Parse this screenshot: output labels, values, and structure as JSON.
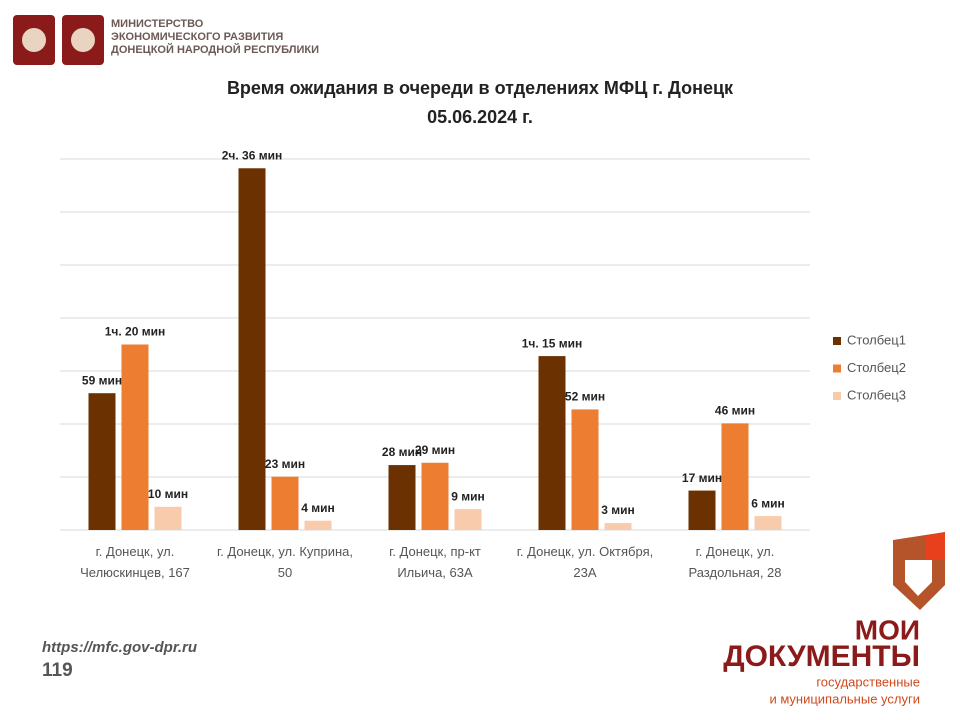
{
  "header": {
    "org_lines": [
      "МИНИСТЕРСТВО",
      "ЭКОНОМИЧЕСКОГО РАЗВИТИЯ",
      "ДОНЕЦКОЙ НАРОДНОЙ РЕСПУБЛИКИ"
    ]
  },
  "footer": {
    "url": "https://mfc.gov-dpr.ru",
    "phone": "119",
    "logo_top": "МОИ",
    "logo_main": "ДОКУМЕНТЫ",
    "logo_sub_1": "государственные",
    "logo_sub_2": "и муниципальные услуги"
  },
  "chart_data": {
    "type": "bar",
    "title": "Время ожидания в очереди в отделениях МФЦ г. Донецк",
    "subtitle": "05.06.2024 г.",
    "categories": [
      "г. Донецк, ул. Челюскинцев, 167",
      "г. Донецк, ул. Куприна, 50",
      "г. Донецк, пр-кт Ильича, 63А",
      "г. Донецк, ул. Октября, 23А",
      "г. Донецк, ул. Раздольная, 28"
    ],
    "series": [
      {
        "name": "Столбец1",
        "color": "#6b3100",
        "values": [
          59,
          156,
          28,
          75,
          17
        ],
        "value_labels": [
          "59 мин",
          "2ч. 36 мин",
          "28 мин",
          "1ч. 15 мин",
          "17 мин"
        ]
      },
      {
        "name": "Столбец2",
        "color": "#ed7d31",
        "values": [
          80,
          23,
          29,
          52,
          46
        ],
        "value_labels": [
          "1ч. 20 мин",
          "23 мин",
          "29 мин",
          "52 мин",
          "46 мин"
        ]
      },
      {
        "name": "Столбец3",
        "color": "#f8cbad",
        "values": [
          10,
          4,
          9,
          3,
          6
        ],
        "value_labels": [
          "10 мин",
          "4 мин",
          "9 мин",
          "3 мин",
          "6 мин"
        ]
      }
    ],
    "ylim": [
      0,
      160
    ],
    "grid": true,
    "legend": "right"
  }
}
